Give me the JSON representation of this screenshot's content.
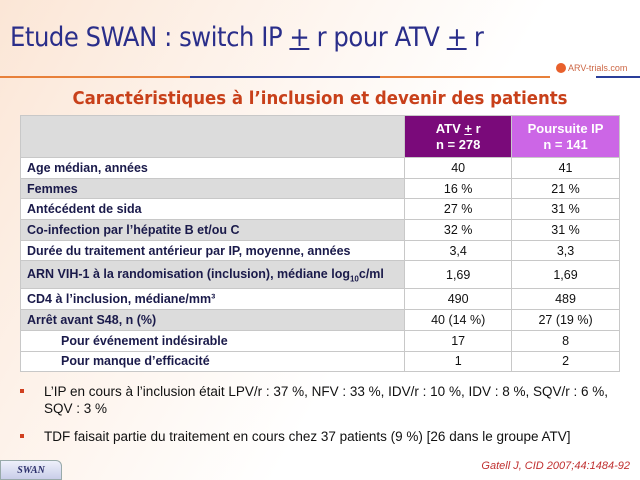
{
  "title": {
    "pre": "Etude SWAN : switch IP ",
    "pm1": "+",
    "mid": " r pour ATV ",
    "pm2": "+",
    "post": " r"
  },
  "logo": "ARV-trials.com",
  "subtitle": "Caractéristiques à l’inclusion et devenir des patients",
  "table": {
    "headers": [
      {
        "a": "ATV ",
        "pm": "+",
        "b": " r",
        "n": "n = 278"
      },
      {
        "a": "Poursuite IP",
        "n": "n = 141"
      }
    ],
    "rows": [
      {
        "label": "Age médian, années",
        "atv": "40",
        "ip": "41"
      },
      {
        "label": "Femmes",
        "atv": "16 %",
        "ip": "21 %"
      },
      {
        "label": "Antécédent de sida",
        "atv": "27 %",
        "ip": "31 %"
      },
      {
        "label": "Co-infection par l’hépatite B et/ou C",
        "atv": "32 %",
        "ip": "31 %"
      },
      {
        "label": "Durée du traitement antérieur par IP, moyenne, années",
        "atv": "3,4",
        "ip": "3,3"
      },
      {
        "label": "ARN VIH-1 à la randomisation (inclusion), médiane log",
        "sub": "10",
        "label_end": "c/ml",
        "atv": "1,69",
        "ip": "1,69"
      },
      {
        "label": "CD4 à l’inclusion, médiane/mm³",
        "atv": "490",
        "ip": "489"
      },
      {
        "label": "Arrêt avant S48, n (%)",
        "atv": "40 (14 %)",
        "ip": "27 (19 %)"
      },
      {
        "label": "Pour événement indésirable",
        "atv": "17",
        "ip": "8"
      },
      {
        "label": "Pour manque d’efficacité",
        "atv": "1",
        "ip": "2"
      }
    ]
  },
  "bullets": [
    "L’IP en cours à l’inclusion était LPV/r : 37 %, NFV : 33 %, IDV/r : 10 %, IDV : 8 %, SQV/r : 6 %, SQV : 3 %",
    "TDF faisait partie du traitement en cours chez 37 patients (9 %) [26 dans le groupe ATV]"
  ],
  "footer": {
    "tab": "SWAN",
    "reference": "Gatell J, CID 2007;44:1484-92"
  }
}
